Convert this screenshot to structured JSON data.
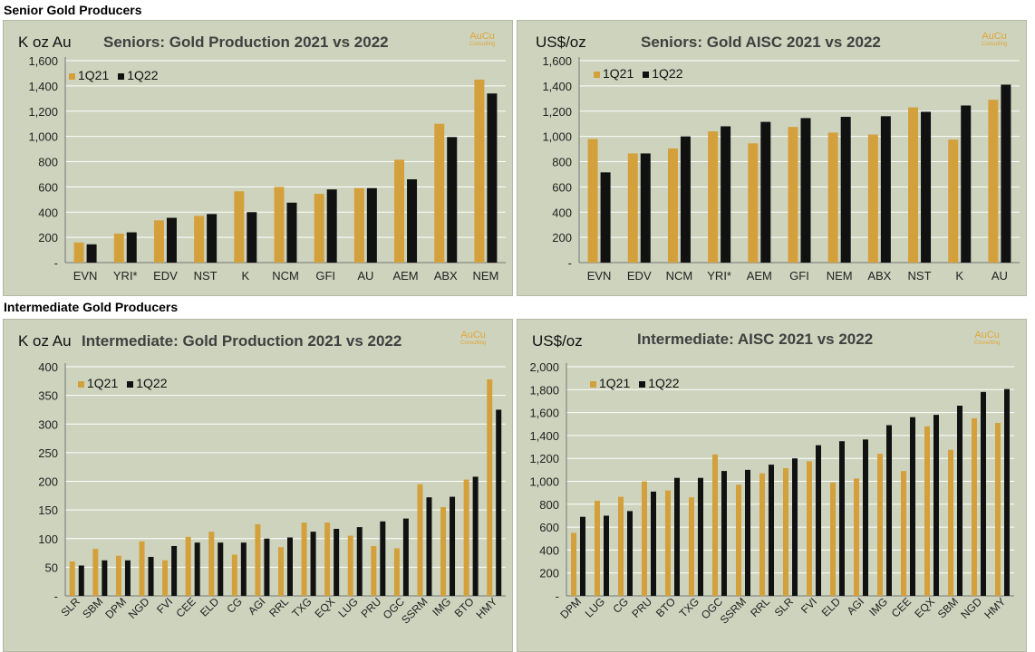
{
  "sections": {
    "senior_title": "Senior Gold Producers",
    "intermediate_title": "Intermediate Gold Producers"
  },
  "brand": {
    "name": "AuCu",
    "tagline": "Consulting"
  },
  "colors": {
    "series_2021": "#d4a03c",
    "series_2022": "#111111",
    "panel_bg": "#cdd3bd",
    "brand": "#e0a63a"
  },
  "chart_data": [
    {
      "id": "c1",
      "type": "bar",
      "unit_label": "K oz Au",
      "title": "Seniors: Gold Production  2021 vs 2022",
      "ylim": [
        0,
        1600
      ],
      "yticks": [
        0,
        200,
        400,
        600,
        800,
        1000,
        1200,
        1400,
        1600
      ],
      "ytick_labels": [
        "-",
        "200",
        "400",
        "600",
        "800",
        "1,000",
        "1,200",
        "1,400",
        "1,600"
      ],
      "categories": [
        "EVN",
        "YRI*",
        "EDV",
        "NST",
        "K",
        "NCM",
        "GFI",
        "AU",
        "AEM",
        "ABX",
        "NEM"
      ],
      "series": [
        {
          "name": "1Q21",
          "values": [
            160,
            230,
            335,
            370,
            565,
            600,
            545,
            590,
            815,
            1100,
            1450
          ]
        },
        {
          "name": "1Q22",
          "values": [
            145,
            240,
            355,
            385,
            400,
            475,
            580,
            590,
            660,
            995,
            1340
          ]
        }
      ]
    },
    {
      "id": "c2",
      "type": "bar",
      "unit_label": "US$/oz",
      "title": "Seniors: Gold AISC 2021 vs 2022",
      "ylim": [
        0,
        1600
      ],
      "yticks": [
        0,
        200,
        400,
        600,
        800,
        1000,
        1200,
        1400,
        1600
      ],
      "ytick_labels": [
        "-",
        "200",
        "400",
        "600",
        "800",
        "1,000",
        "1,200",
        "1,400",
        "1,600"
      ],
      "categories": [
        "EVN",
        "EDV",
        "NCM",
        "YRI*",
        "AEM",
        "GFI",
        "NEM",
        "ABX",
        "NST",
        "K",
        "AU"
      ],
      "series": [
        {
          "name": "1Q21",
          "values": [
            980,
            865,
            905,
            1040,
            945,
            1075,
            1030,
            1015,
            1230,
            975,
            1290
          ]
        },
        {
          "name": "1Q22",
          "values": [
            715,
            865,
            1000,
            1080,
            1115,
            1145,
            1155,
            1160,
            1195,
            1245,
            1410
          ]
        }
      ]
    },
    {
      "id": "c3",
      "type": "bar",
      "unit_label": "K oz Au",
      "title": "Intermediate:  Gold Production  2021 vs 2022",
      "ylim": [
        0,
        400
      ],
      "yticks": [
        0,
        50,
        100,
        150,
        200,
        250,
        300,
        350,
        400
      ],
      "ytick_labels": [
        "-",
        "50",
        "100",
        "150",
        "200",
        "250",
        "300",
        "350",
        "400"
      ],
      "categories": [
        "SLR",
        "SBM",
        "DPM",
        "NGD",
        "FVI",
        "CEE",
        "ELD",
        "CG",
        "AGI",
        "RRL",
        "TXG",
        "EQX",
        "LUG",
        "PRU",
        "OGC",
        "SSRM",
        "IMG",
        "BTO",
        "HMY"
      ],
      "series": [
        {
          "name": "1Q21",
          "values": [
            60,
            82,
            70,
            95,
            62,
            103,
            112,
            72,
            125,
            85,
            128,
            128,
            105,
            87,
            83,
            195,
            155,
            203,
            378
          ]
        },
        {
          "name": "1Q22",
          "values": [
            53,
            62,
            62,
            68,
            87,
            93,
            93,
            93,
            100,
            102,
            112,
            117,
            120,
            130,
            135,
            172,
            173,
            208,
            325
          ]
        }
      ]
    },
    {
      "id": "c4",
      "type": "bar",
      "unit_label": "US$/oz",
      "title": "Intermediate:  AISC 2021 vs 2022",
      "ylim": [
        0,
        2000
      ],
      "yticks": [
        0,
        200,
        400,
        600,
        800,
        1000,
        1200,
        1400,
        1600,
        1800,
        2000
      ],
      "ytick_labels": [
        "-",
        "200",
        "400",
        "600",
        "800",
        "1,000",
        "1,200",
        "1,400",
        "1,600",
        "1,800",
        "2,000"
      ],
      "categories": [
        "DPM",
        "LUG",
        "CG",
        "PRU",
        "BTO",
        "TXG",
        "OGC",
        "SSRM",
        "RRL",
        "SLR",
        "FVI",
        "ELD",
        "AGI",
        "IMG",
        "CEE",
        "EQX",
        "SBM",
        "NGD",
        "HMY"
      ],
      "series": [
        {
          "name": "1Q21",
          "values": [
            550,
            830,
            865,
            1000,
            920,
            860,
            1235,
            970,
            1070,
            1115,
            1175,
            990,
            1025,
            1240,
            1090,
            1480,
            1275,
            1550,
            1510
          ]
        },
        {
          "name": "1Q22",
          "values": [
            690,
            700,
            740,
            910,
            1030,
            1030,
            1090,
            1100,
            1145,
            1200,
            1315,
            1350,
            1365,
            1490,
            1560,
            1580,
            1660,
            1780,
            1805
          ]
        }
      ]
    }
  ]
}
